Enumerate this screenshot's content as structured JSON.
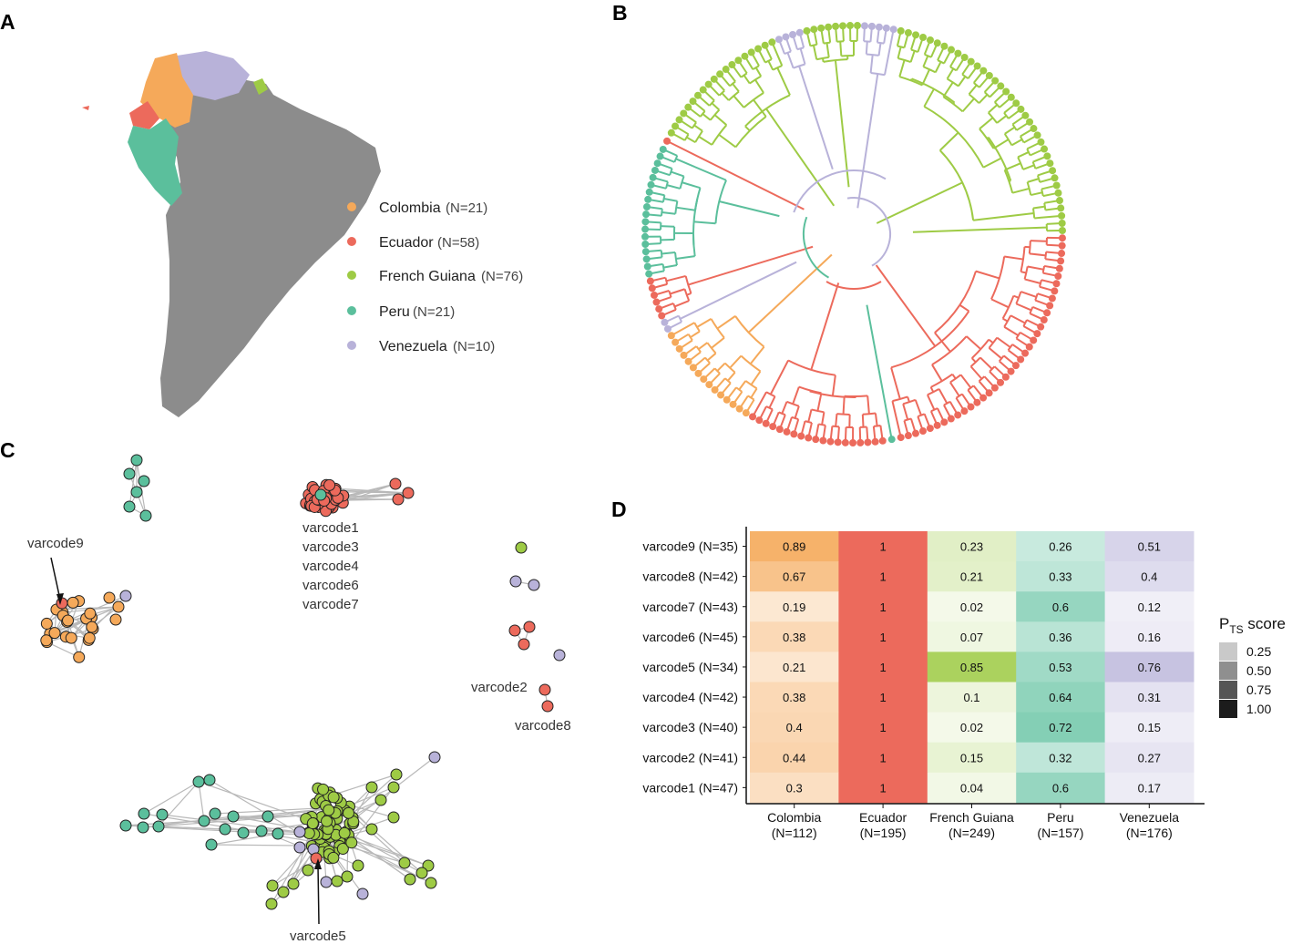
{
  "panels": {
    "a": "A",
    "b": "B",
    "c": "C",
    "d": "D"
  },
  "colors": {
    "Colombia": "#f5a95a",
    "Ecuador": "#ec6a5c",
    "French Guiana": "#9ecb45",
    "Peru": "#5bbf9c",
    "Venezuela": "#b8b2d9",
    "land": "#8c8c8c",
    "edge": "#b9b9b9"
  },
  "legend": [
    {
      "country": "Colombia",
      "n": "(N=21)"
    },
    {
      "country": "Ecuador",
      "n": "(N=58)"
    },
    {
      "country": "French Guiana",
      "n": "(N=76)"
    },
    {
      "country": "Peru",
      "n": "(N=21)"
    },
    {
      "country": "Venezuela",
      "n": "(N=10)"
    }
  ],
  "network_labels": {
    "big_red": [
      "varcode1",
      "varcode3",
      "varcode4",
      "varcode6",
      "varcode7"
    ],
    "orange": "varcode9",
    "varcode2": "varcode2",
    "varcode8": "varcode8",
    "green": "varcode5"
  },
  "chart_data": {
    "type": "heatmap",
    "rows": [
      "varcode9 (N=35)",
      "varcode8 (N=42)",
      "varcode7 (N=43)",
      "varcode6 (N=45)",
      "varcode5 (N=34)",
      "varcode4 (N=42)",
      "varcode3 (N=40)",
      "varcode2 (N=41)",
      "varcode1 (N=47)"
    ],
    "columns": [
      {
        "name": "Colombia",
        "n": "(N=112)"
      },
      {
        "name": "Ecuador",
        "n": "(N=195)"
      },
      {
        "name": "French Guiana",
        "n": "(N=249)"
      },
      {
        "name": "Peru",
        "n": "(N=157)"
      },
      {
        "name": "Venezuela",
        "n": "(N=176)"
      }
    ],
    "values": [
      [
        "0.89",
        "1",
        "0.23",
        "0.26",
        "0.51"
      ],
      [
        "0.67",
        "1",
        "0.21",
        "0.33",
        "0.4"
      ],
      [
        "0.19",
        "1",
        "0.02",
        "0.6",
        "0.12"
      ],
      [
        "0.38",
        "1",
        "0.07",
        "0.36",
        "0.16"
      ],
      [
        "0.21",
        "1",
        "0.85",
        "0.53",
        "0.76"
      ],
      [
        "0.38",
        "1",
        "0.1",
        "0.64",
        "0.31"
      ],
      [
        "0.4",
        "1",
        "0.02",
        "0.72",
        "0.15"
      ],
      [
        "0.44",
        "1",
        "0.15",
        "0.32",
        "0.27"
      ],
      [
        "0.3",
        "1",
        "0.04",
        "0.6",
        "0.17"
      ]
    ],
    "legend_title": "P",
    "legend_title_sub": "TS",
    "legend_title_rest": " score",
    "legend_levels": [
      "0.25",
      "0.50",
      "0.75",
      "1.00"
    ]
  }
}
